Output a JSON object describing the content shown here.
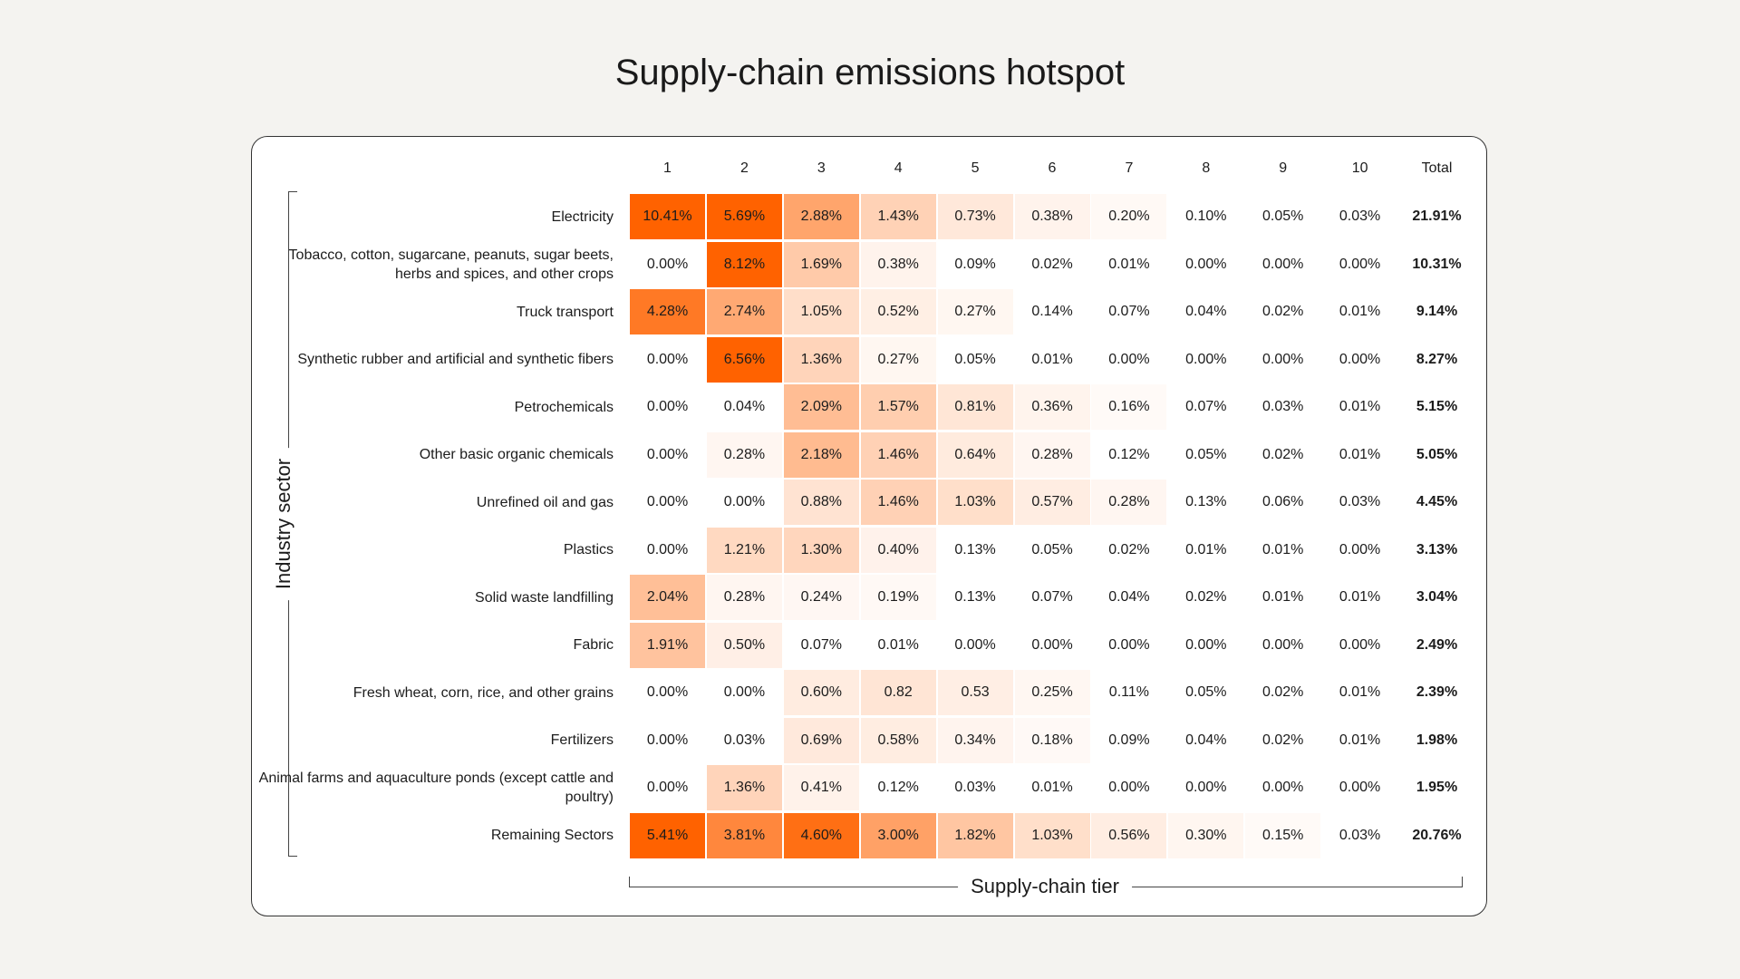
{
  "chart_data": {
    "type": "heatmap",
    "title": "Supply-chain emissions hotspot",
    "xlabel": "Supply-chain tier",
    "ylabel": "Industry sector",
    "columns": [
      "1",
      "2",
      "3",
      "4",
      "5",
      "6",
      "7",
      "8",
      "9",
      "10",
      "Total"
    ],
    "color_low": "#ffffff",
    "color_high": "#ff6200",
    "rows": [
      {
        "label": "Electricity",
        "values": [
          "10.41%",
          "5.69%",
          "2.88%",
          "1.43%",
          "0.73%",
          "0.38%",
          "0.20%",
          "0.10%",
          "0.05%",
          "0.03%"
        ],
        "total": "21.91%"
      },
      {
        "label": "Tobacco, cotton, sugarcane, peanuts, sugar beets, herbs and spices, and other crops",
        "values": [
          "0.00%",
          "8.12%",
          "1.69%",
          "0.38%",
          "0.09%",
          "0.02%",
          "0.01%",
          "0.00%",
          "0.00%",
          "0.00%"
        ],
        "total": "10.31%"
      },
      {
        "label": "Truck transport",
        "values": [
          "4.28%",
          "2.74%",
          "1.05%",
          "0.52%",
          "0.27%",
          "0.14%",
          "0.07%",
          "0.04%",
          "0.02%",
          "0.01%"
        ],
        "total": "9.14%"
      },
      {
        "label": "Synthetic rubber and artificial and synthetic fibers",
        "values": [
          "0.00%",
          "6.56%",
          "1.36%",
          "0.27%",
          "0.05%",
          "0.01%",
          "0.00%",
          "0.00%",
          "0.00%",
          "0.00%"
        ],
        "total": "8.27%"
      },
      {
        "label": "Petrochemicals",
        "values": [
          "0.00%",
          "0.04%",
          "2.09%",
          "1.57%",
          "0.81%",
          "0.36%",
          "0.16%",
          "0.07%",
          "0.03%",
          "0.01%"
        ],
        "total": "5.15%"
      },
      {
        "label": "Other basic organic chemicals",
        "values": [
          "0.00%",
          "0.28%",
          "2.18%",
          "1.46%",
          "0.64%",
          "0.28%",
          "0.12%",
          "0.05%",
          "0.02%",
          "0.01%"
        ],
        "total": "5.05%"
      },
      {
        "label": "Unrefined oil and gas",
        "values": [
          "0.00%",
          "0.00%",
          "0.88%",
          "1.46%",
          "1.03%",
          "0.57%",
          "0.28%",
          "0.13%",
          "0.06%",
          "0.03%"
        ],
        "total": "4.45%"
      },
      {
        "label": "Plastics",
        "values": [
          "0.00%",
          "1.21%",
          "1.30%",
          "0.40%",
          "0.13%",
          "0.05%",
          "0.02%",
          "0.01%",
          "0.01%",
          "0.00%"
        ],
        "total": "3.13%"
      },
      {
        "label": "Solid waste landfilling",
        "values": [
          "2.04%",
          "0.28%",
          "0.24%",
          "0.19%",
          "0.13%",
          "0.07%",
          "0.04%",
          "0.02%",
          "0.01%",
          "0.01%"
        ],
        "total": "3.04%"
      },
      {
        "label": "Fabric",
        "values": [
          "1.91%",
          "0.50%",
          "0.07%",
          "0.01%",
          "0.00%",
          "0.00%",
          "0.00%",
          "0.00%",
          "0.00%",
          "0.00%"
        ],
        "total": "2.49%"
      },
      {
        "label": "Fresh wheat, corn, rice, and other grains",
        "values": [
          "0.00%",
          "0.00%",
          "0.60%",
          "0.82",
          "0.53",
          "0.25%",
          "0.11%",
          "0.05%",
          "0.02%",
          "0.01%"
        ],
        "total": "2.39%"
      },
      {
        "label": "Fertilizers",
        "values": [
          "0.00%",
          "0.03%",
          "0.69%",
          "0.58%",
          "0.34%",
          "0.18%",
          "0.09%",
          "0.04%",
          "0.02%",
          "0.01%"
        ],
        "total": "1.98%"
      },
      {
        "label": "Animal farms and aquaculture ponds (except cattle and poultry)",
        "values": [
          "0.00%",
          "1.36%",
          "0.41%",
          "0.12%",
          "0.03%",
          "0.01%",
          "0.00%",
          "0.00%",
          "0.00%",
          "0.00%"
        ],
        "total": "1.95%"
      },
      {
        "label": "Remaining Sectors",
        "values": [
          "5.41%",
          "3.81%",
          "4.60%",
          "3.00%",
          "1.82%",
          "1.03%",
          "0.56%",
          "0.30%",
          "0.15%",
          "0.03%"
        ],
        "total": "20.76%"
      }
    ]
  }
}
